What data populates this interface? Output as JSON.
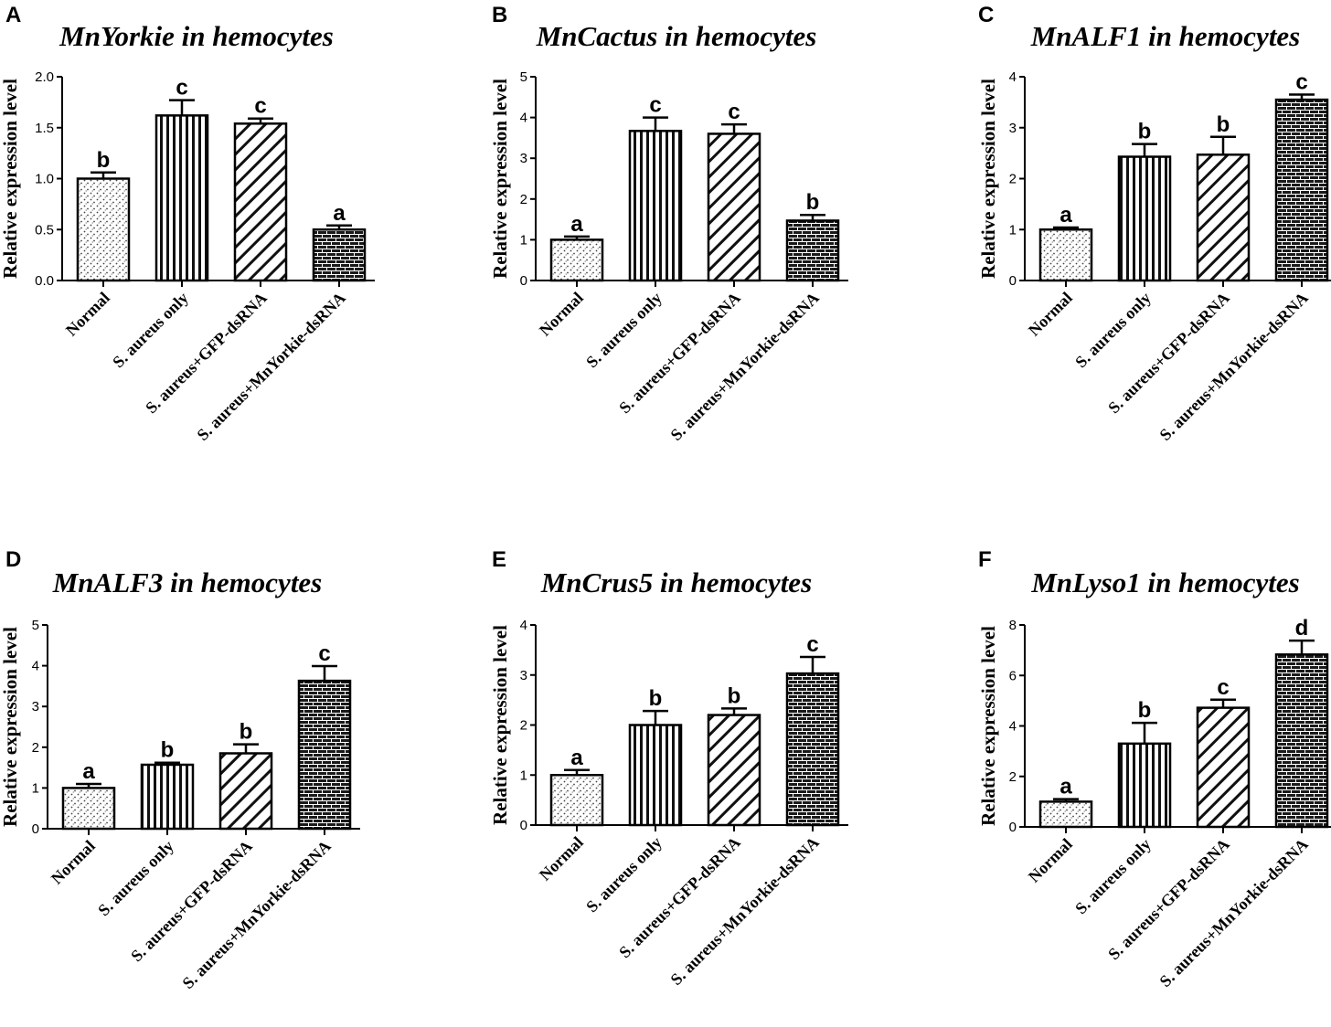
{
  "chart_data": [
    {
      "panel": "A",
      "type": "bar",
      "title": "MnYorkie in hemocytes",
      "xlabel": "",
      "ylabel": "Relative expression level",
      "ylim": [
        0,
        2.0
      ],
      "yticks": [
        "0.0",
        "0.5",
        "1.0",
        "1.5",
        "2.0"
      ],
      "categories": [
        "Normal",
        "S. aureus only",
        "S. aureus+GFP-dsRNA",
        "S. aureus+MnYorkie-dsRNA"
      ],
      "values": [
        1.0,
        1.62,
        1.54,
        0.5
      ],
      "errors": [
        0.06,
        0.15,
        0.05,
        0.04
      ],
      "significance": [
        "b",
        "c",
        "c",
        "a"
      ]
    },
    {
      "panel": "B",
      "type": "bar",
      "title": "MnCactus in hemocytes",
      "xlabel": "",
      "ylabel": "Relative expression level",
      "ylim": [
        0,
        5
      ],
      "yticks": [
        "0",
        "1",
        "2",
        "3",
        "4",
        "5"
      ],
      "categories": [
        "Normal",
        "S. aureus only",
        "S. aureus+GFP-dsRNA",
        "S. aureus+MnYorkie-dsRNA"
      ],
      "values": [
        1.0,
        3.67,
        3.6,
        1.47
      ],
      "errors": [
        0.08,
        0.33,
        0.23,
        0.14
      ],
      "significance": [
        "a",
        "c",
        "c",
        "b"
      ]
    },
    {
      "panel": "C",
      "type": "bar",
      "title": "MnALF1 in hemocytes",
      "xlabel": "",
      "ylabel": "Relative expression level",
      "ylim": [
        0,
        4
      ],
      "yticks": [
        "0",
        "1",
        "2",
        "3",
        "4"
      ],
      "categories": [
        "Normal",
        "S. aureus only",
        "S. aureus+GFP-dsRNA",
        "S. aureus+MnYorkie-dsRNA"
      ],
      "values": [
        1.0,
        2.43,
        2.47,
        3.55
      ],
      "errors": [
        0.04,
        0.25,
        0.35,
        0.1
      ],
      "significance": [
        "a",
        "b",
        "b",
        "c"
      ]
    },
    {
      "panel": "D",
      "type": "bar",
      "title": "MnALF3 in hemocytes",
      "xlabel": "",
      "ylabel": "Relative expression level",
      "ylim": [
        0,
        5
      ],
      "yticks": [
        "0",
        "1",
        "2",
        "3",
        "4",
        "5"
      ],
      "categories": [
        "Normal",
        "S. aureus only",
        "S. aureus+GFP-dsRNA",
        "S. aureus+MnYorkie-dsRNA"
      ],
      "values": [
        1.0,
        1.57,
        1.85,
        3.63
      ],
      "errors": [
        0.1,
        0.05,
        0.22,
        0.36
      ],
      "significance": [
        "a",
        "b",
        "b",
        "c"
      ]
    },
    {
      "panel": "E",
      "type": "bar",
      "title": "MnCrus5 in hemocytes",
      "xlabel": "",
      "ylabel": "Relative expression level",
      "ylim": [
        0,
        4
      ],
      "yticks": [
        "0",
        "1",
        "2",
        "3",
        "4"
      ],
      "categories": [
        "Normal",
        "S. aureus only",
        "S. aureus+GFP-dsRNA",
        "S. aureus+MnYorkie-dsRNA"
      ],
      "values": [
        1.0,
        2.0,
        2.2,
        3.03
      ],
      "errors": [
        0.1,
        0.28,
        0.13,
        0.33
      ],
      "significance": [
        "a",
        "b",
        "b",
        "c"
      ]
    },
    {
      "panel": "F",
      "type": "bar",
      "title": "MnLyso1 in hemocytes",
      "xlabel": "",
      "ylabel": "Relative expression level",
      "ylim": [
        0,
        8
      ],
      "yticks": [
        "0",
        "2",
        "4",
        "6",
        "8"
      ],
      "categories": [
        "Normal",
        "S. aureus only",
        "S. aureus+GFP-dsRNA",
        "S. aureus+MnYorkie-dsRNA"
      ],
      "values": [
        1.0,
        3.3,
        4.72,
        6.83
      ],
      "errors": [
        0.1,
        0.82,
        0.32,
        0.55
      ],
      "significance": [
        "a",
        "b",
        "c",
        "d"
      ]
    }
  ]
}
